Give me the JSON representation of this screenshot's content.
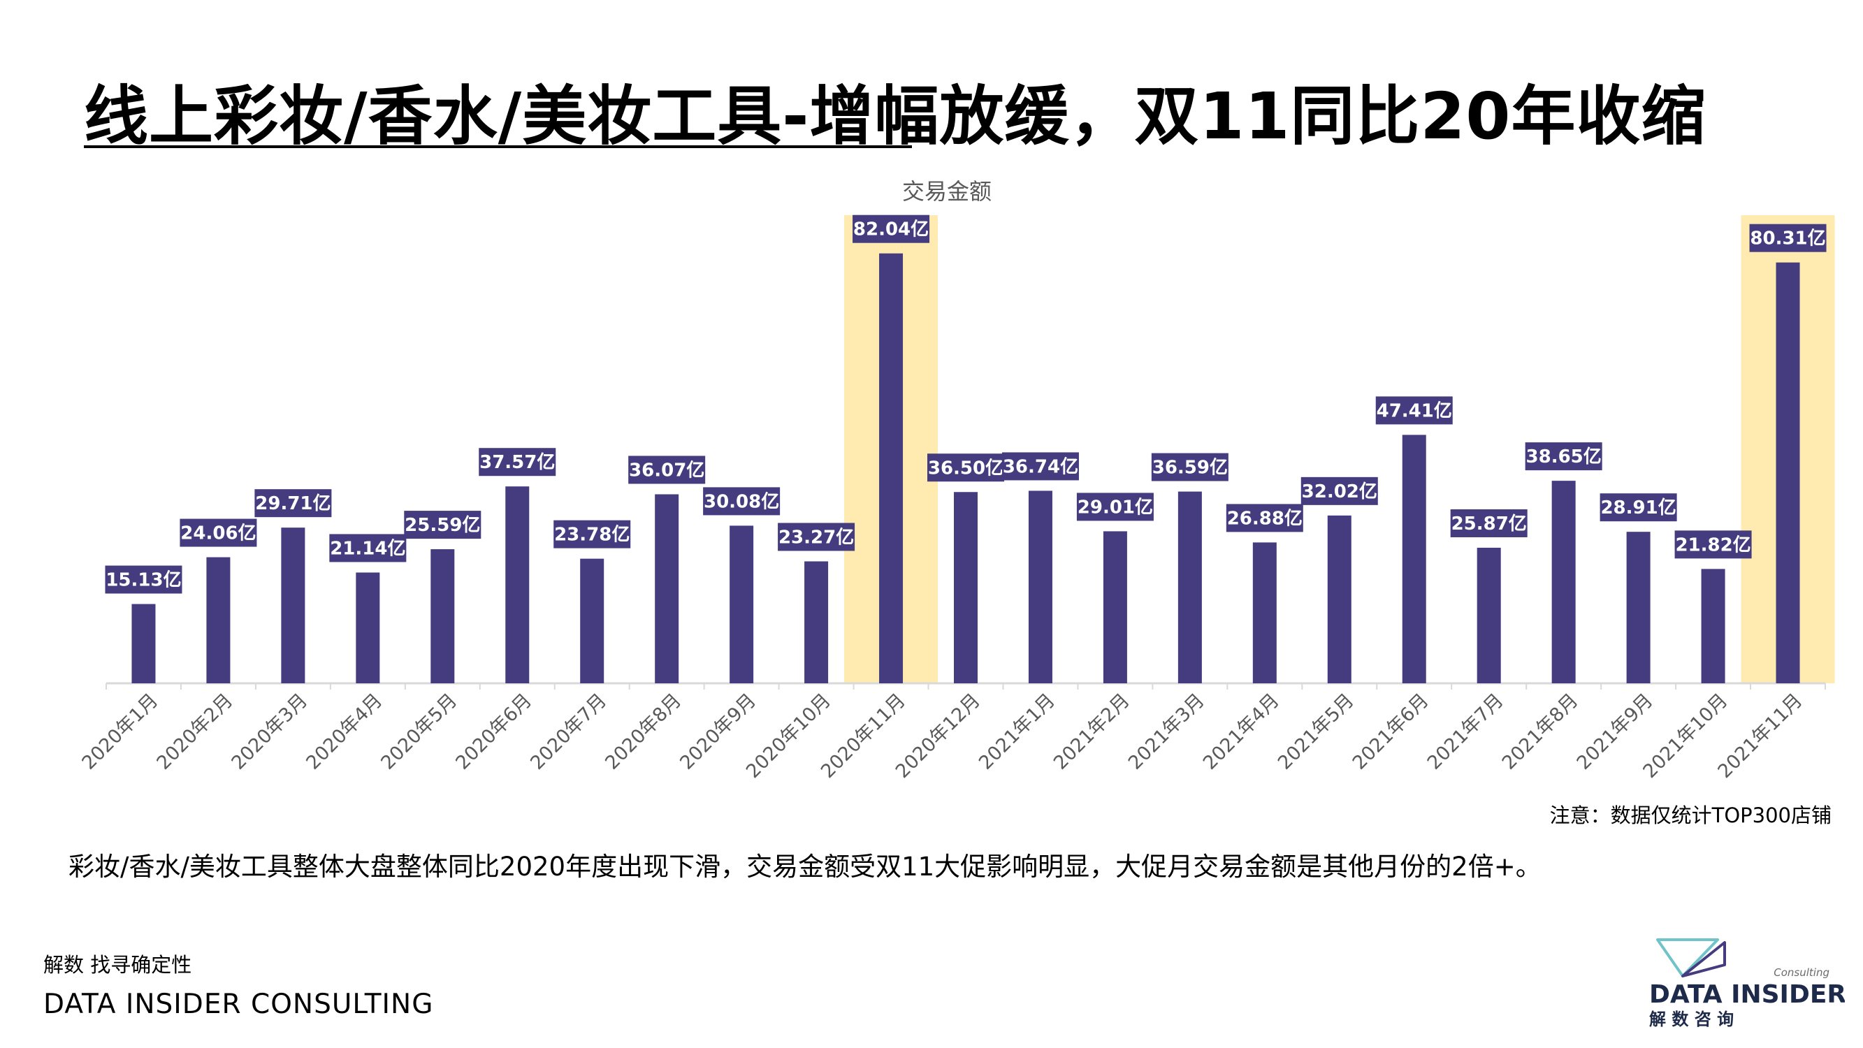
{
  "header": {
    "title": "线上彩妆/香水/美妆工具-增幅放缓，双11同比20年收缩"
  },
  "chart_data": {
    "type": "bar",
    "title": "交易金额",
    "categories": [
      "2020年1月",
      "2020年2月",
      "2020年3月",
      "2020年4月",
      "2020年5月",
      "2020年6月",
      "2020年7月",
      "2020年8月",
      "2020年9月",
      "2020年10月",
      "2020年11月",
      "2020年12月",
      "2021年1月",
      "2021年2月",
      "2021年3月",
      "2021年4月",
      "2021年5月",
      "2021年6月",
      "2021年7月",
      "2021年8月",
      "2021年9月",
      "2021年10月",
      "2021年11月"
    ],
    "values": [
      15.13,
      24.06,
      29.71,
      21.14,
      25.59,
      37.57,
      23.78,
      36.07,
      30.08,
      23.27,
      82.04,
      36.5,
      36.74,
      29.01,
      36.59,
      26.88,
      32.02,
      47.41,
      25.87,
      38.65,
      28.91,
      21.82,
      80.31
    ],
    "data_labels": [
      "15.13亿",
      "24.06亿",
      "29.71亿",
      "21.14亿",
      "25.59亿",
      "37.57亿",
      "23.78亿",
      "36.07亿",
      "30.08亿",
      "23.27亿",
      "82.04亿",
      "36.50亿",
      "36.74亿",
      "29.01亿",
      "36.59亿",
      "26.88亿",
      "32.02亿",
      "47.41亿",
      "25.87亿",
      "38.65亿",
      "28.91亿",
      "21.82亿",
      "80.31亿"
    ],
    "highlighted_categories": [
      "2020年11月",
      "2021年11月"
    ],
    "ylim": [
      0,
      88
    ],
    "grid": false,
    "colors": {
      "bar": "#443C7E",
      "label_bg": "#443C7E",
      "label_text": "#FFFFFF",
      "highlight": "#FFEAB0",
      "axis": "#D9D9D9",
      "tick_text": "#595959"
    }
  },
  "footnote": "注意：数据仅统计TOP300店铺",
  "summary": "彩妆/香水/美妆工具整体大盘整体同比2020年度出现下滑，交易金额受双11大促影响明显，大促月交易金额是其他月份的2倍+。",
  "footer": {
    "slogan": "解数 找寻确定性",
    "company": "DATA INSIDER CONSULTING"
  },
  "brand": {
    "sub": "Consulting",
    "name": "DATA INSIDER",
    "cn": "解 数 咨 询",
    "colors": {
      "teal": "#6FC3C9",
      "purple": "#443C7E",
      "text": "#1E2A4A"
    }
  }
}
